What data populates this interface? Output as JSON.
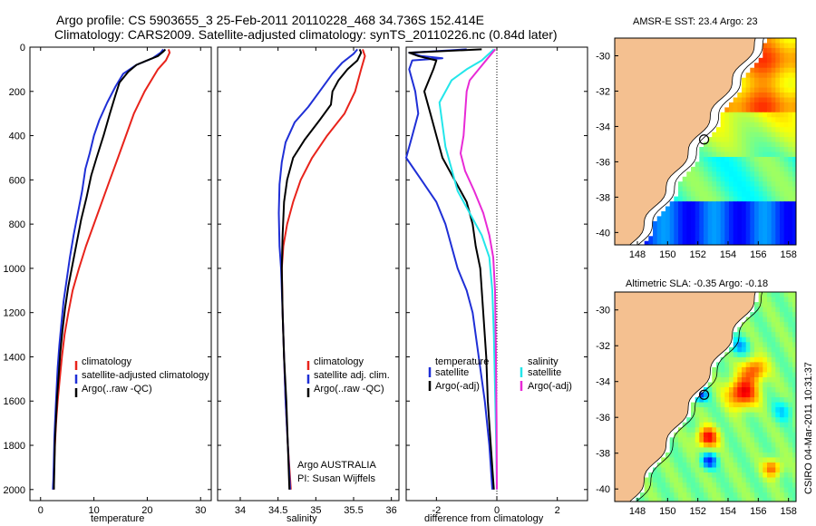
{
  "header": {
    "title_line1": "Argo profile: CS 5903655_3 25-Feb-2011 20110228_468 34.736S 152.414E",
    "title_line2": "Climatology: CARS2009. Satellite-adjusted climatology: synTS_20110226.nc (0.84d later)"
  },
  "colors": {
    "climatology": "#e8231b",
    "satellite": "#1f2fd6",
    "argo": "#000000",
    "salinity_satellite": "#23e6ea",
    "salinity_argo": "#e82ad6",
    "land": "#f4c090"
  },
  "attribution": {
    "argo_center": "Argo AUSTRALIA",
    "pi": "PI: Susan Wijffels",
    "stamp": "CSIRO 04-Mar-2011 10:31:37"
  },
  "chart_data": [
    {
      "type": "line",
      "xlabel": "temperature",
      "ylabel": "",
      "xlim": [
        -2,
        32
      ],
      "ylim": [
        2050,
        0
      ],
      "xticks": [
        0,
        10,
        20,
        30
      ],
      "yticks": [
        0,
        200,
        400,
        600,
        800,
        1000,
        1200,
        1400,
        1600,
        1800,
        2000
      ],
      "legend": {
        "position": "lower-right",
        "entries": [
          "climatology",
          "satellite-adjusted climatology",
          "Argo(..raw -QC)"
        ]
      },
      "series": [
        {
          "name": "climatology",
          "color_key": "climatology",
          "points": [
            [
              24,
              10
            ],
            [
              24.2,
              25
            ],
            [
              23.5,
              60
            ],
            [
              22,
              100
            ],
            [
              19.5,
              200
            ],
            [
              17.5,
              300
            ],
            [
              16,
              400
            ],
            [
              14.5,
              500
            ],
            [
              13,
              600
            ],
            [
              11.5,
              700
            ],
            [
              10,
              800
            ],
            [
              8.5,
              900
            ],
            [
              7.2,
              1000
            ],
            [
              6,
              1100
            ],
            [
              5.2,
              1200
            ],
            [
              4.5,
              1300
            ],
            [
              4,
              1400
            ],
            [
              3.6,
              1500
            ],
            [
              3.2,
              1600
            ],
            [
              2.9,
              1700
            ],
            [
              2.7,
              1800
            ],
            [
              2.5,
              1900
            ],
            [
              2.4,
              2000
            ]
          ]
        },
        {
          "name": "satellite-adjusted climatology",
          "color_key": "satellite",
          "points": [
            [
              23,
              10
            ],
            [
              22.5,
              25
            ],
            [
              21,
              50
            ],
            [
              18,
              80
            ],
            [
              15.5,
              120
            ],
            [
              14,
              180
            ],
            [
              12.5,
              250
            ],
            [
              11,
              330
            ],
            [
              10,
              400
            ],
            [
              9.2,
              480
            ],
            [
              8.4,
              550
            ],
            [
              7.8,
              650
            ],
            [
              7,
              750
            ],
            [
              6.2,
              850
            ],
            [
              5.5,
              950
            ],
            [
              4.9,
              1050
            ],
            [
              4.3,
              1150
            ],
            [
              3.9,
              1250
            ],
            [
              3.5,
              1350
            ],
            [
              3.2,
              1450
            ],
            [
              3,
              1550
            ],
            [
              2.8,
              1650
            ],
            [
              2.6,
              1750
            ],
            [
              2.5,
              1850
            ],
            [
              2.4,
              1950
            ],
            [
              2.3,
              2000
            ]
          ]
        },
        {
          "name": "Argo(..raw -QC)",
          "color_key": "argo",
          "points": [
            [
              23.4,
              10
            ],
            [
              23,
              20
            ],
            [
              22,
              40
            ],
            [
              20,
              60
            ],
            [
              18,
              80
            ],
            [
              16.5,
              110
            ],
            [
              14.8,
              160
            ],
            [
              14,
              220
            ],
            [
              13,
              300
            ],
            [
              11.8,
              400
            ],
            [
              10.5,
              500
            ],
            [
              9.5,
              580
            ],
            [
              8.6,
              680
            ],
            [
              7.6,
              780
            ],
            [
              6.8,
              880
            ],
            [
              6,
              980
            ],
            [
              5.2,
              1080
            ],
            [
              4.6,
              1180
            ],
            [
              4.1,
              1280
            ],
            [
              3.7,
              1380
            ],
            [
              3.4,
              1480
            ],
            [
              3.1,
              1580
            ],
            [
              2.9,
              1680
            ],
            [
              2.7,
              1780
            ],
            [
              2.6,
              1880
            ],
            [
              2.5,
              1980
            ],
            [
              2.5,
              2000
            ]
          ]
        }
      ]
    },
    {
      "type": "line",
      "xlabel": "salinity",
      "ylabel": "",
      "xlim": [
        33.7,
        36.1
      ],
      "ylim": [
        2050,
        0
      ],
      "xticks": [
        34,
        34.5,
        35,
        35.5,
        36
      ],
      "yticks": [
        0,
        200,
        400,
        600,
        800,
        1000,
        1200,
        1400,
        1600,
        1800,
        2000
      ],
      "legend": {
        "position": "lower-right",
        "entries": [
          "climatology",
          "satellite adj. clim.",
          "Argo(..raw -QC)"
        ]
      },
      "series": [
        {
          "name": "climatology",
          "color_key": "climatology",
          "points": [
            [
              35.62,
              10
            ],
            [
              35.65,
              40
            ],
            [
              35.6,
              100
            ],
            [
              35.52,
              200
            ],
            [
              35.38,
              300
            ],
            [
              35.15,
              400
            ],
            [
              34.95,
              500
            ],
            [
              34.8,
              600
            ],
            [
              34.7,
              700
            ],
            [
              34.62,
              800
            ],
            [
              34.57,
              900
            ],
            [
              34.55,
              1000
            ],
            [
              34.56,
              1200
            ],
            [
              34.58,
              1400
            ],
            [
              34.6,
              1600
            ],
            [
              34.63,
              1800
            ],
            [
              34.67,
              2000
            ]
          ]
        },
        {
          "name": "satellite adj. clim.",
          "color_key": "satellite",
          "points": [
            [
              35.55,
              10
            ],
            [
              35.5,
              30
            ],
            [
              35.35,
              70
            ],
            [
              35.22,
              120
            ],
            [
              35.05,
              200
            ],
            [
              34.9,
              270
            ],
            [
              34.72,
              340
            ],
            [
              34.6,
              430
            ],
            [
              34.55,
              520
            ],
            [
              34.52,
              620
            ],
            [
              34.51,
              750
            ],
            [
              34.52,
              900
            ],
            [
              34.54,
              1000
            ],
            [
              34.56,
              1200
            ],
            [
              34.58,
              1400
            ],
            [
              34.6,
              1600
            ],
            [
              34.63,
              1800
            ],
            [
              34.66,
              2000
            ]
          ]
        },
        {
          "name": "Argo(..raw -QC)",
          "color_key": "argo",
          "points": [
            [
              35.58,
              10
            ],
            [
              35.6,
              25
            ],
            [
              35.55,
              60
            ],
            [
              35.42,
              100
            ],
            [
              35.3,
              150
            ],
            [
              35.22,
              200
            ],
            [
              35.2,
              260
            ],
            [
              35.05,
              330
            ],
            [
              34.85,
              420
            ],
            [
              34.7,
              500
            ],
            [
              34.62,
              600
            ],
            [
              34.58,
              700
            ],
            [
              34.56,
              850
            ],
            [
              34.55,
              1000
            ],
            [
              34.56,
              1200
            ],
            [
              34.58,
              1400
            ],
            [
              34.61,
              1600
            ],
            [
              34.63,
              1800
            ],
            [
              34.65,
              2000
            ]
          ]
        }
      ]
    },
    {
      "type": "line",
      "xlabel": "difference from climatology",
      "ylabel": "",
      "xlim": [
        -3,
        3
      ],
      "ylim": [
        2050,
        0
      ],
      "xticks": [
        -2,
        0,
        2
      ],
      "yticks": [
        0,
        200,
        400,
        600,
        800,
        1000,
        1200,
        1400,
        1600,
        1800,
        2000
      ],
      "zero_line": 0,
      "legend": {
        "position": "lower-center",
        "groups": [
          {
            "title": "temperature",
            "entries": [
              "satellite",
              "Argo(-adj)"
            ]
          },
          {
            "title": "salinity",
            "entries": [
              "satellite",
              "Argo(-adj)"
            ]
          }
        ]
      },
      "series": [
        {
          "name": "temperature satellite",
          "color_key": "satellite",
          "points": [
            [
              -1,
              10
            ],
            [
              -2.9,
              25
            ],
            [
              -2.5,
              40
            ],
            [
              -1.8,
              50
            ],
            [
              -2.8,
              60
            ],
            [
              -2.9,
              100
            ],
            [
              -2.7,
              200
            ],
            [
              -2.6,
              300
            ],
            [
              -2.8,
              400
            ],
            [
              -3,
              500
            ],
            [
              -2.5,
              600
            ],
            [
              -2,
              700
            ],
            [
              -1.7,
              800
            ],
            [
              -1.5,
              900
            ],
            [
              -1.3,
              1000
            ],
            [
              -1,
              1100
            ],
            [
              -0.8,
              1200
            ],
            [
              -0.6,
              1400
            ],
            [
              -0.4,
              1600
            ],
            [
              -0.25,
              1800
            ],
            [
              -0.15,
              2000
            ]
          ]
        },
        {
          "name": "temperature Argo(-adj)",
          "color_key": "argo",
          "points": [
            [
              -0.5,
              10
            ],
            [
              -2.9,
              25
            ],
            [
              -2.6,
              40
            ],
            [
              -2,
              60
            ],
            [
              -2.1,
              100
            ],
            [
              -2.4,
              200
            ],
            [
              -2.2,
              300
            ],
            [
              -2,
              400
            ],
            [
              -1.8,
              500
            ],
            [
              -1.4,
              600
            ],
            [
              -1,
              700
            ],
            [
              -0.8,
              800
            ],
            [
              -0.7,
              900
            ],
            [
              -0.55,
              1000
            ],
            [
              -0.45,
              1200
            ],
            [
              -0.35,
              1400
            ],
            [
              -0.3,
              1600
            ],
            [
              -0.2,
              1800
            ],
            [
              -0.1,
              2000
            ]
          ]
        },
        {
          "name": "salinity satellite",
          "color_key": "salinity_satellite",
          "points": [
            [
              -0.1,
              10
            ],
            [
              -0.5,
              60
            ],
            [
              -1,
              100
            ],
            [
              -1.5,
              150
            ],
            [
              -1.9,
              250
            ],
            [
              -1.8,
              350
            ],
            [
              -1.7,
              450
            ],
            [
              -1.5,
              550
            ],
            [
              -1.3,
              650
            ],
            [
              -0.9,
              750
            ],
            [
              -0.5,
              850
            ],
            [
              -0.25,
              950
            ],
            [
              -0.15,
              1100
            ],
            [
              -0.1,
              1300
            ],
            [
              -0.05,
              1600
            ],
            [
              -0.02,
              1800
            ],
            [
              0,
              2000
            ]
          ]
        },
        {
          "name": "salinity Argo(-adj)",
          "color_key": "salinity_argo",
          "points": [
            [
              -0.05,
              10
            ],
            [
              -0.3,
              50
            ],
            [
              -0.6,
              100
            ],
            [
              -0.9,
              150
            ],
            [
              -1.0,
              200
            ],
            [
              -1.05,
              300
            ],
            [
              -1.1,
              400
            ],
            [
              -1.2,
              480
            ],
            [
              -1.05,
              560
            ],
            [
              -0.75,
              650
            ],
            [
              -0.45,
              750
            ],
            [
              -0.25,
              850
            ],
            [
              -0.12,
              950
            ],
            [
              -0.06,
              1100
            ],
            [
              -0.03,
              1400
            ],
            [
              -0.01,
              1700
            ],
            [
              0,
              2000
            ]
          ]
        }
      ]
    },
    {
      "type": "heatmap",
      "title": "AMSR-E SST: 23.4   Argo: 23",
      "xlim": [
        146.5,
        158.5
      ],
      "ylim": [
        -40.7,
        -29
      ],
      "xticks": [
        148,
        150,
        152,
        154,
        156,
        158
      ],
      "yticks": [
        -30,
        -32,
        -34,
        -36,
        -38,
        -40
      ],
      "profile_marker": {
        "lon": 152.414,
        "lat": -34.736
      },
      "colormap": "jet"
    },
    {
      "type": "heatmap",
      "title": "Altimetric SLA: -0.35   Argo: -0.18",
      "xlim": [
        146.5,
        158.5
      ],
      "ylim": [
        -40.7,
        -29
      ],
      "xticks": [
        148,
        150,
        152,
        154,
        156,
        158
      ],
      "yticks": [
        -30,
        -32,
        -34,
        -36,
        -38,
        -40
      ],
      "profile_marker": {
        "lon": 152.414,
        "lat": -34.736
      },
      "colormap": "jet"
    }
  ]
}
